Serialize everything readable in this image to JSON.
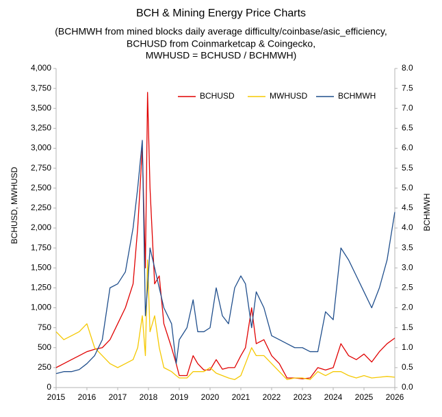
{
  "chart_data": {
    "type": "line",
    "title": "BCH & Mining Energy Price Charts",
    "subtitle": [
      "(BCHMWH from mined blocks daily average difficulty/coinbase/asic_efficiency,",
      "BCHUSD from Coinmarketcap & Coingecko,",
      "MWHUSD = BCHUSD / BCHMWH)"
    ],
    "y_label": "BCHUSD, MWHUSD",
    "y2_label": "BCHMWH",
    "legend": "top",
    "x": [
      2015.0,
      2015.25,
      2015.5,
      2015.75,
      2016.0,
      2016.25,
      2016.5,
      2016.75,
      2017.0,
      2017.25,
      2017.5,
      2017.65,
      2017.8,
      2017.9,
      2017.97,
      2018.05,
      2018.2,
      2018.35,
      2018.5,
      2018.75,
      2018.9,
      2019.0,
      2019.25,
      2019.45,
      2019.6,
      2019.8,
      2020.0,
      2020.2,
      2020.4,
      2020.6,
      2020.8,
      2021.0,
      2021.15,
      2021.35,
      2021.5,
      2021.75,
      2022.0,
      2022.25,
      2022.5,
      2022.75,
      2023.0,
      2023.25,
      2023.5,
      2023.75,
      2024.0,
      2024.25,
      2024.5,
      2024.75,
      2025.0,
      2025.25,
      2025.5,
      2025.75,
      2026.0
    ],
    "series": [
      {
        "name": "BCHUSD",
        "color": "#e00000",
        "values": [
          250,
          300,
          350,
          400,
          450,
          480,
          500,
          600,
          800,
          1000,
          1300,
          2000,
          3000,
          1500,
          3700,
          2500,
          1300,
          1400,
          800,
          500,
          300,
          150,
          150,
          400,
          300,
          220,
          220,
          350,
          230,
          250,
          250,
          400,
          500,
          1000,
          550,
          600,
          400,
          300,
          120,
          120,
          110,
          120,
          250,
          220,
          250,
          550,
          400,
          350,
          420,
          320,
          450,
          550,
          620
        ]
      },
      {
        "name": "MWHUSD",
        "color": "#f5c800",
        "values": [
          700,
          600,
          650,
          700,
          800,
          500,
          400,
          300,
          250,
          300,
          350,
          500,
          900,
          400,
          1600,
          700,
          900,
          500,
          250,
          200,
          150,
          120,
          120,
          200,
          200,
          200,
          250,
          180,
          150,
          120,
          100,
          150,
          300,
          500,
          400,
          400,
          300,
          200,
          100,
          120,
          120,
          100,
          200,
          150,
          200,
          200,
          150,
          120,
          150,
          120,
          130,
          140,
          130
        ]
      },
      {
        "name": "BCHMWH",
        "color": "#1f4e8c",
        "axis": "y2",
        "values": [
          0.35,
          0.4,
          0.4,
          0.45,
          0.6,
          0.8,
          1.2,
          2.5,
          2.6,
          2.9,
          4.0,
          5.0,
          6.2,
          1.8,
          2.5,
          3.5,
          3.0,
          2.5,
          2.0,
          1.6,
          0.6,
          1.2,
          1.5,
          2.2,
          1.4,
          1.4,
          1.5,
          2.5,
          1.8,
          1.6,
          2.5,
          2.8,
          2.6,
          1.5,
          2.4,
          2.0,
          1.3,
          1.2,
          1.1,
          1.0,
          1.0,
          0.9,
          0.9,
          1.9,
          1.7,
          3.5,
          3.2,
          2.8,
          2.4,
          2.0,
          2.5,
          3.2,
          4.4
        ]
      }
    ],
    "xlim": [
      2015,
      2026
    ],
    "xticks": [
      2015,
      2016,
      2017,
      2018,
      2019,
      2020,
      2021,
      2022,
      2023,
      2024,
      2025,
      2026
    ],
    "ylim": [
      0,
      4000
    ],
    "yticks": [
      0,
      250,
      500,
      750,
      {
        "value": 1000,
        "label": "1,000"
      },
      {
        "value": 1250,
        "label": "1,250"
      },
      {
        "value": 1500,
        "label": "1,500"
      },
      {
        "value": 1750,
        "label": "1,750"
      },
      {
        "value": 2000,
        "label": "2,000"
      },
      {
        "value": 2250,
        "label": "2,250"
      },
      {
        "value": 2500,
        "label": "2,500"
      },
      {
        "value": 2750,
        "label": "2,750"
      },
      {
        "value": 3000,
        "label": "3,000"
      },
      {
        "value": 3250,
        "label": "3,250"
      },
      {
        "value": 3500,
        "label": "3,500"
      },
      {
        "value": 3750,
        "label": "3,750"
      },
      {
        "value": 4000,
        "label": "4,000"
      }
    ],
    "y2lim": [
      0,
      8
    ],
    "y2ticks": [
      {
        "value": 0,
        "label": "0.0"
      },
      0.5,
      {
        "value": 1,
        "label": "1.0"
      },
      1.5,
      {
        "value": 2,
        "label": "2.0"
      },
      2.5,
      {
        "value": 3,
        "label": "3.0"
      },
      3.5,
      {
        "value": 4,
        "label": "4.0"
      },
      4.5,
      {
        "value": 5,
        "label": "5.0"
      },
      5.5,
      {
        "value": 6,
        "label": "6.0"
      },
      6.5,
      {
        "value": 7,
        "label": "7.0"
      },
      7.5,
      {
        "value": 8,
        "label": "8.0"
      }
    ],
    "grid": false
  }
}
